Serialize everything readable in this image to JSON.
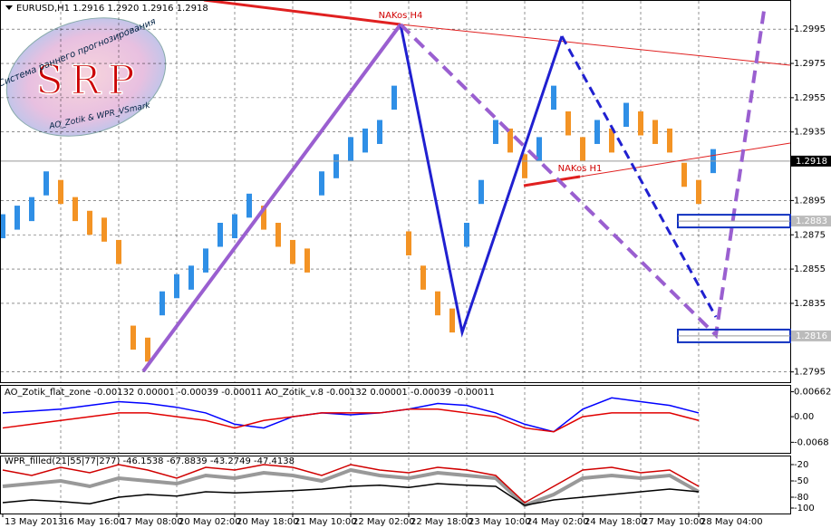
{
  "chart_data": [
    {
      "type": "ohlc",
      "title": "EURUSD,H1  1.2916 1.2920 1.2916 1.2918",
      "logo": {
        "text": "SRP",
        "top": "Система раннего прогнозирования",
        "bottom": "AO_Zotik & WPR_VSmark"
      },
      "annotations": [
        "NAKos H4",
        "NAKos H1"
      ],
      "up_color": "#2f8fe6",
      "down_color": "#f39324",
      "grid": true,
      "x": [
        0,
        1,
        2,
        3,
        4,
        5,
        6,
        7,
        8,
        9,
        10,
        11,
        12,
        13,
        14,
        15,
        16,
        17,
        18,
        19,
        20,
        21,
        22,
        23,
        24,
        25,
        26,
        27,
        28,
        29,
        30,
        31,
        32,
        33,
        34,
        35,
        36,
        37,
        38,
        39,
        40,
        41,
        42,
        43,
        44,
        45,
        46,
        47,
        48,
        49
      ],
      "high": [
        1.2887,
        1.2892,
        1.2897,
        1.2912,
        1.2907,
        1.2897,
        1.2889,
        1.2885,
        1.2872,
        1.2822,
        1.2815,
        1.2842,
        1.2852,
        1.2857,
        1.2867,
        1.2882,
        1.2887,
        1.2899,
        1.2892,
        1.2882,
        1.2872,
        1.2867,
        1.2912,
        1.2922,
        1.2932,
        1.2937,
        1.2942,
        1.2962,
        1.2877,
        1.2857,
        1.2842,
        1.2832,
        1.2882,
        1.2907,
        1.2942,
        1.2937,
        1.2922,
        1.2932,
        1.2962,
        1.2947,
        1.2932,
        1.2942,
        1.2937,
        1.2952,
        1.2947,
        1.2942,
        1.2937,
        1.2917,
        1.2907,
        1.2925
      ],
      "low": [
        1.2873,
        1.2878,
        1.2883,
        1.2898,
        1.2893,
        1.2883,
        1.2875,
        1.2871,
        1.2858,
        1.2808,
        1.2801,
        1.2828,
        1.2838,
        1.2843,
        1.2853,
        1.2868,
        1.2873,
        1.2885,
        1.2878,
        1.2868,
        1.2858,
        1.2853,
        1.2898,
        1.2908,
        1.2918,
        1.2923,
        1.2928,
        1.2948,
        1.2863,
        1.2843,
        1.2828,
        1.2818,
        1.2868,
        1.2893,
        1.2928,
        1.2923,
        1.2908,
        1.2918,
        1.2948,
        1.2933,
        1.2918,
        1.2928,
        1.2923,
        1.2938,
        1.2933,
        1.2928,
        1.2923,
        1.2903,
        1.2893,
        1.2911
      ],
      "xlim": [
        0,
        54
      ],
      "xticks": [
        {
          "value": 0,
          "label": "13 May 2013"
        },
        {
          "value": 4,
          "label": "16 May 16:00"
        },
        {
          "value": 8,
          "label": "17 May 08:00"
        },
        {
          "value": 12,
          "label": "20 May 02:00"
        },
        {
          "value": 16,
          "label": "20 May 18:00"
        },
        {
          "value": 20,
          "label": "21 May 10:00"
        },
        {
          "value": 24,
          "label": "22 May 02:00"
        },
        {
          "value": 28,
          "label": "22 May 18:00"
        },
        {
          "value": 32,
          "label": "23 May 10:00"
        },
        {
          "value": 36,
          "label": "24 May 02:00"
        },
        {
          "value": 40,
          "label": "24 May 18:00"
        },
        {
          "value": 44,
          "label": "27 May 10:00"
        },
        {
          "value": 48,
          "label": "28 May 04:00"
        }
      ],
      "ylim": [
        1.2789,
        1.3012
      ],
      "yticks": [
        1.2995,
        1.2975,
        1.2955,
        1.2935,
        1.2895,
        1.2875,
        1.2855,
        1.2835,
        1.2795
      ],
      "price_lines": [
        1.2918,
        1.2883,
        1.2816
      ]
    },
    {
      "type": "line",
      "title": "AO_Zotik_flat_zone -0.00132 0.00001 -0.00039 -0.00011  AO_Zotik_v.8 -0.00132 0.00001 -0.00039 -0.00011",
      "x": [
        0,
        2,
        4,
        6,
        8,
        10,
        12,
        14,
        16,
        18,
        20,
        22,
        24,
        26,
        28,
        30,
        32,
        34,
        36,
        38,
        40,
        42,
        44,
        46,
        48
      ],
      "series": [
        {
          "color": "#0000ff",
          "values": [
            0.001,
            0.0015,
            0.002,
            0.003,
            0.004,
            0.0035,
            0.0025,
            0.001,
            -0.002,
            -0.003,
            0.0,
            0.001,
            0.0005,
            0.001,
            0.002,
            0.0035,
            0.003,
            0.001,
            -0.002,
            -0.004,
            0.002,
            0.005,
            0.004,
            0.003,
            0.001
          ]
        },
        {
          "color": "#e00000",
          "values": [
            -0.003,
            -0.002,
            -0.001,
            0.0,
            0.001,
            0.001,
            0.0,
            -0.001,
            -0.003,
            -0.001,
            0.0,
            0.001,
            0.001,
            0.001,
            0.002,
            0.002,
            0.001,
            0.0,
            -0.003,
            -0.004,
            0.0,
            0.001,
            0.001,
            0.001,
            -0.001
          ]
        }
      ],
      "ylim": [
        -0.0096,
        0.0082
      ],
      "yticks": [
        0.00662,
        {
          "value": 0,
          "label": "0.00"
        },
        -0.0068
      ]
    },
    {
      "type": "line",
      "title": "WPR_filled(21|55|77|277) -46.1538 -67.8839 -43.2749 -47.4138",
      "x": [
        0,
        2,
        4,
        6,
        8,
        10,
        12,
        14,
        16,
        18,
        20,
        22,
        24,
        26,
        28,
        30,
        32,
        34,
        36,
        38,
        40,
        42,
        44,
        46,
        48
      ],
      "series": [
        {
          "color": "#999999",
          "values": [
            -60,
            -55,
            -50,
            -60,
            -45,
            -50,
            -55,
            -40,
            -45,
            -35,
            -40,
            -50,
            -30,
            -40,
            -45,
            -35,
            -40,
            -45,
            -95,
            -75,
            -45,
            -40,
            -45,
            -40,
            -70
          ]
        },
        {
          "color": "#d00000",
          "values": [
            -30,
            -40,
            -25,
            -35,
            -20,
            -30,
            -45,
            -25,
            -30,
            -20,
            -25,
            -40,
            -20,
            -30,
            -35,
            -25,
            -30,
            -40,
            -90,
            -60,
            -30,
            -25,
            -35,
            -30,
            -60
          ]
        },
        {
          "color": "#000000",
          "values": [
            -90,
            -85,
            -88,
            -92,
            -80,
            -75,
            -78,
            -70,
            -72,
            -70,
            -68,
            -65,
            -60,
            -58,
            -62,
            -55,
            -58,
            -60,
            -95,
            -85,
            -80,
            -75,
            -70,
            -65,
            -70
          ]
        }
      ],
      "ylim": [
        -110,
        -5
      ],
      "yticks": [
        -20,
        -50,
        -80,
        -100
      ]
    }
  ]
}
